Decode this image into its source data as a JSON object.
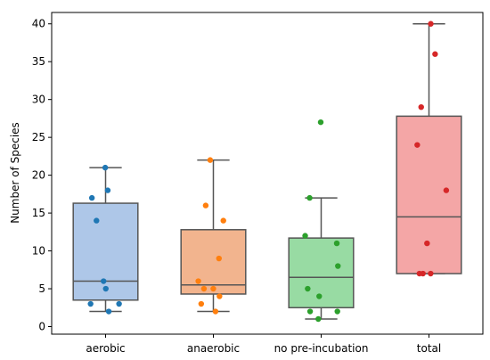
{
  "chart_data": {
    "type": "box",
    "title": "",
    "xlabel": "",
    "ylabel": "Number of Species",
    "ylim": [
      -1,
      41.5
    ],
    "yticks": [
      0,
      5,
      10,
      15,
      20,
      25,
      30,
      35,
      40
    ],
    "grid": false,
    "categories": [
      "aerobic",
      "anaerobic",
      "no pre-incubation",
      "total"
    ],
    "boxes": [
      {
        "name": "aerobic",
        "fill_color": "#aec7e8",
        "point_color": "#1f77b4",
        "q1": 3.5,
        "median": 6,
        "q3": 16.3,
        "whisker_low": 2,
        "whisker_high": 21,
        "points": [
          21,
          18,
          17,
          14,
          6,
          5,
          3,
          3,
          2
        ]
      },
      {
        "name": "anaerobic",
        "fill_color": "#f2b48e",
        "point_color": "#ff7f0e",
        "q1": 4.3,
        "median": 5.5,
        "q3": 12.8,
        "whisker_low": 2,
        "whisker_high": 22,
        "points": [
          22,
          16,
          14,
          9,
          6,
          5,
          5,
          4,
          3,
          2
        ]
      },
      {
        "name": "no pre-incubation",
        "fill_color": "#98dba3",
        "point_color": "#2ca02c",
        "q1": 2.5,
        "median": 6.5,
        "q3": 11.7,
        "whisker_low": 1,
        "whisker_high": 17,
        "points": [
          27,
          17,
          12,
          11,
          8,
          5,
          4,
          2,
          2,
          1
        ]
      },
      {
        "name": "total",
        "fill_color": "#f4a6a6",
        "point_color": "#d62728",
        "q1": 7,
        "median": 14.5,
        "q3": 27.8,
        "whisker_low": 7,
        "whisker_high": 40,
        "points": [
          40,
          36,
          29,
          24,
          18,
          11,
          7,
          7,
          7
        ]
      }
    ]
  }
}
